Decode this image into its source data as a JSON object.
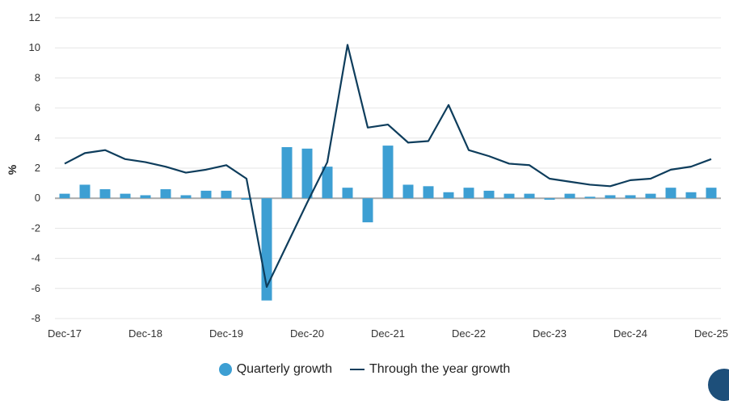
{
  "chart_data": {
    "type": "bar+line",
    "ylabel": "%",
    "ylim": [
      -8,
      12
    ],
    "yticks": [
      -8,
      -6,
      -4,
      -2,
      0,
      2,
      4,
      6,
      8,
      10,
      12
    ],
    "xtick_labels": [
      "Dec-17",
      "Dec-18",
      "Dec-19",
      "Dec-20",
      "Dec-21",
      "Dec-22",
      "Dec-23",
      "Dec-24",
      "Dec-25"
    ],
    "quarters_count": 33,
    "series": [
      {
        "name": "Quarterly growth",
        "kind": "bar",
        "color": "#3d9fd3",
        "values": [
          0.3,
          0.9,
          0.6,
          0.3,
          0.2,
          0.6,
          0.2,
          0.5,
          0.5,
          -0.1,
          -6.8,
          3.4,
          3.3,
          2.1,
          0.7,
          -1.6,
          3.5,
          0.9,
          0.8,
          0.4,
          0.7,
          0.5,
          0.3,
          0.3,
          -0.1,
          0.3,
          0.1,
          0.2,
          0.2,
          0.3,
          0.7,
          0.4,
          0.7
        ]
      },
      {
        "name": "Through the year growth",
        "kind": "line",
        "color": "#0e3d5c",
        "values": [
          2.3,
          3.0,
          3.2,
          2.6,
          2.4,
          2.1,
          1.7,
          1.9,
          2.2,
          1.3,
          -5.9,
          -3.1,
          -0.3,
          2.4,
          10.2,
          4.7,
          4.9,
          3.7,
          3.8,
          6.2,
          3.2,
          2.8,
          2.3,
          2.2,
          1.3,
          1.1,
          0.9,
          0.8,
          1.2,
          1.3,
          1.9,
          2.1,
          2.6
        ]
      }
    ],
    "legend_position": "bottom-center",
    "grid": true
  }
}
